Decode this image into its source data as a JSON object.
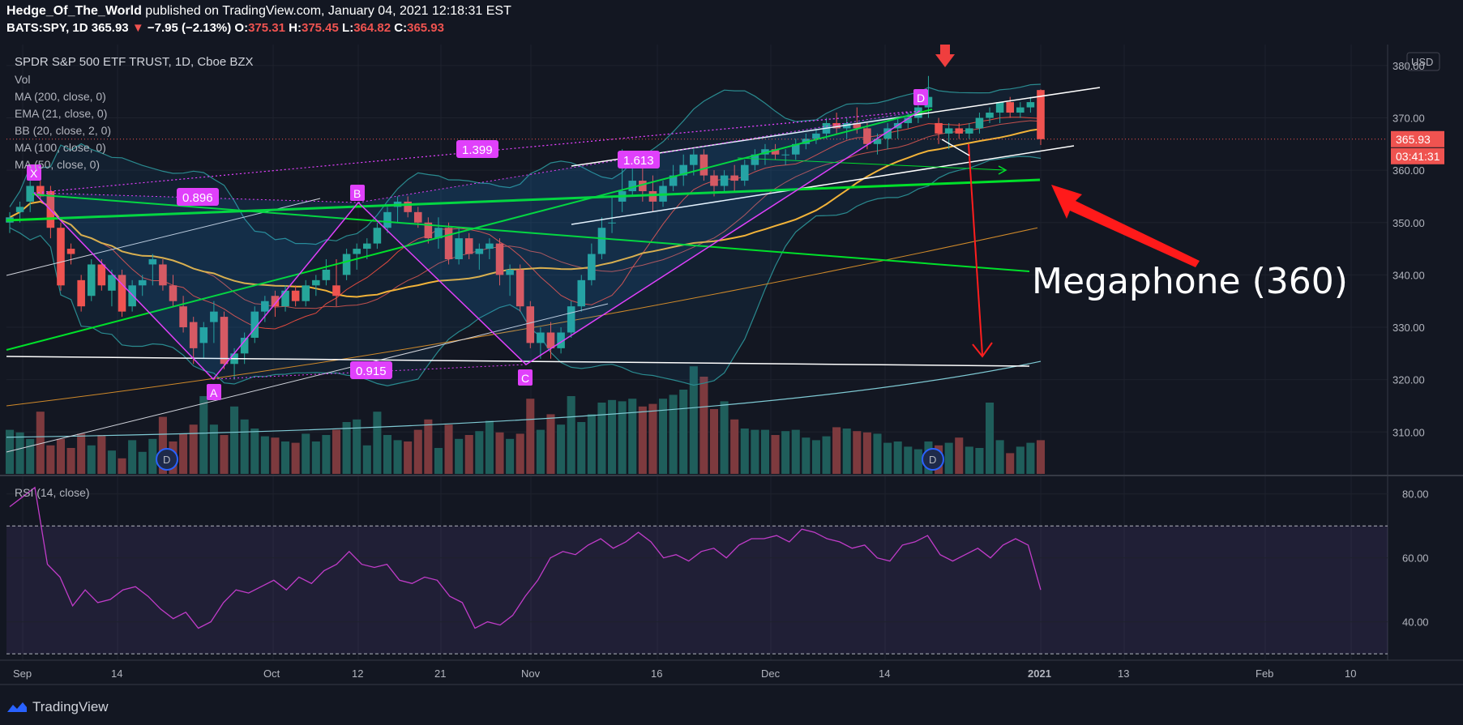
{
  "header": {
    "author": "Hedge_Of_The_World",
    "published": "published on TradingView.com, January 04, 2021 12:18:31 EST",
    "symbol": "BATS:SPY, 1D",
    "last": "365.93",
    "arrow": "▼",
    "change": "−7.95 (−2.13%)",
    "o_label": "O:",
    "o_val": "375.31",
    "h_label": "H:",
    "h_val": "375.45",
    "l_label": "L:",
    "l_val": "364.82",
    "c_label": "C:",
    "c_val": "365.93"
  },
  "legend": {
    "title": "SPDR S&P 500 ETF TRUST, 1D, Cboe BZX",
    "items": [
      "Vol",
      "MA (200, close, 0)",
      "EMA (21, close, 0)",
      "BB (20, close, 2, 0)",
      "MA (100, close, 0)",
      "MA (50, close, 0)"
    ]
  },
  "rsi_legend": "RSI (14, close)",
  "currency": "USD",
  "price_tag": "365.93",
  "countdown_tag": "03:41:31",
  "annotation": "Megaphone (360)",
  "pattern_points": [
    "X",
    "A",
    "B",
    "C",
    "D"
  ],
  "fib_labels": [
    "0.896",
    "1.399",
    "0.915",
    "1.613"
  ],
  "earnings_badges": [
    "D",
    "D"
  ],
  "footer": {
    "brand": "TradingView"
  },
  "colors": {
    "background": "#131722",
    "up": "#26a69a",
    "down": "#ef5350",
    "vol_up": "#1f5e5b",
    "vol_down": "#7d3a3e",
    "pattern": "#e040fb",
    "trend_green": "#00e02a",
    "ma50": "#f2b339",
    "ma200": "#7fcad4"
  },
  "chart_data": [
    {
      "type": "candlestick",
      "title": "SPDR S&P 500 ETF TRUST, 1D, Cboe BZX",
      "x_tick_labels": [
        "Sep",
        "14",
        "Oct",
        "12",
        "21",
        "Nov",
        "16",
        "Dec",
        "14",
        "2021",
        "13",
        "Feb",
        "10"
      ],
      "y_tick_labels": [
        "380.00",
        "370.00",
        "360.00",
        "350.00",
        "340.00",
        "330.00",
        "320.00",
        "310.00"
      ],
      "ylim": [
        302,
        384
      ],
      "last_price": 365.93,
      "candles": [
        [
          350,
          352,
          348,
          351
        ],
        [
          352,
          354,
          350,
          353
        ],
        [
          354,
          358,
          352,
          357
        ],
        [
          357,
          358,
          354,
          355
        ],
        [
          356,
          357,
          347,
          349
        ],
        [
          349,
          350,
          337,
          338
        ],
        [
          345,
          346,
          342,
          344
        ],
        [
          339,
          340,
          333,
          334
        ],
        [
          336,
          343,
          335,
          342
        ],
        [
          342,
          343,
          337,
          338
        ],
        [
          337,
          341,
          334,
          340
        ],
        [
          340,
          341,
          332,
          333
        ],
        [
          334,
          339,
          333,
          338
        ],
        [
          338,
          340,
          336,
          339
        ],
        [
          342,
          344,
          338,
          343
        ],
        [
          342,
          343,
          337,
          338
        ],
        [
          338,
          340,
          334,
          335
        ],
        [
          334,
          336,
          329,
          330
        ],
        [
          331,
          332,
          323,
          326
        ],
        [
          327,
          331,
          324,
          330
        ],
        [
          331,
          335,
          327,
          333
        ],
        [
          332,
          333,
          322,
          323
        ],
        [
          323,
          326,
          320,
          325
        ],
        [
          325,
          329,
          323,
          328
        ],
        [
          328,
          334,
          327,
          333
        ],
        [
          333,
          336,
          331,
          335
        ],
        [
          336,
          337,
          332,
          334
        ],
        [
          334,
          338,
          333,
          337
        ],
        [
          337,
          338,
          334,
          335
        ],
        [
          335,
          339,
          334,
          338
        ],
        [
          338,
          340,
          336,
          339
        ],
        [
          339,
          343,
          338,
          341
        ],
        [
          338,
          343,
          334,
          336
        ],
        [
          340,
          345,
          339,
          344
        ],
        [
          344,
          346,
          341,
          345
        ],
        [
          345,
          347,
          343,
          346
        ],
        [
          346,
          350,
          345,
          349
        ],
        [
          349,
          353,
          348,
          352
        ],
        [
          353,
          355,
          350,
          354
        ],
        [
          354,
          355,
          351,
          352
        ],
        [
          352,
          353,
          349,
          350
        ],
        [
          350,
          351,
          346,
          347
        ],
        [
          347,
          351,
          345,
          349
        ],
        [
          349,
          350,
          342,
          343
        ],
        [
          343,
          349,
          342,
          347
        ],
        [
          347,
          348,
          343,
          344
        ],
        [
          344,
          346,
          341,
          345
        ],
        [
          345,
          347,
          343,
          346
        ],
        [
          346,
          347,
          338,
          340
        ],
        [
          340,
          342,
          336,
          341
        ],
        [
          341,
          342,
          333,
          334
        ],
        [
          334,
          335,
          326,
          327
        ],
        [
          327,
          330,
          324,
          329
        ],
        [
          329,
          331,
          324,
          326
        ],
        [
          326,
          330,
          325,
          329
        ],
        [
          329,
          335,
          328,
          334
        ],
        [
          334,
          340,
          333,
          339
        ],
        [
          339,
          346,
          338,
          344
        ],
        [
          344,
          351,
          343,
          349
        ],
        [
          350,
          355,
          348,
          350
        ],
        [
          354,
          364,
          352,
          356
        ],
        [
          356,
          363,
          355,
          358
        ],
        [
          358,
          361,
          354,
          356
        ],
        [
          356,
          359,
          352,
          354
        ],
        [
          354,
          358,
          353,
          357
        ],
        [
          357,
          361,
          356,
          359
        ],
        [
          359,
          363,
          357,
          361
        ],
        [
          361,
          364,
          359,
          363
        ],
        [
          363,
          364,
          358,
          359
        ],
        [
          359,
          360,
          355,
          357
        ],
        [
          357,
          360,
          356,
          359
        ],
        [
          359,
          361,
          356,
          358
        ],
        [
          358,
          362,
          357,
          361
        ],
        [
          361,
          364,
          360,
          363
        ],
        [
          363,
          365,
          361,
          364
        ],
        [
          364,
          365,
          362,
          363
        ],
        [
          363,
          364,
          361,
          363
        ],
        [
          363,
          366,
          362,
          365
        ],
        [
          365,
          367,
          364,
          366
        ],
        [
          366,
          368,
          365,
          367
        ],
        [
          367,
          370,
          366,
          369
        ],
        [
          369,
          371,
          367,
          368
        ],
        [
          368,
          370,
          366,
          369
        ],
        [
          369,
          372,
          367,
          368
        ],
        [
          368,
          369,
          364,
          365
        ],
        [
          365,
          367,
          363,
          366
        ],
        [
          366,
          369,
          364,
          368
        ],
        [
          368,
          370,
          366,
          369
        ],
        [
          369,
          371,
          368,
          370
        ],
        [
          370,
          373,
          369,
          372
        ],
        [
          372,
          378,
          370,
          374
        ],
        [
          369,
          370,
          365,
          367
        ],
        [
          367,
          369,
          364,
          368
        ],
        [
          368,
          369,
          366,
          367
        ],
        [
          367,
          369,
          366,
          368
        ],
        [
          368,
          371,
          367,
          370
        ],
        [
          370,
          372,
          369,
          371
        ],
        [
          371,
          373,
          369,
          373
        ],
        [
          373,
          374,
          370,
          371
        ],
        [
          371,
          373,
          370,
          372
        ],
        [
          372,
          374,
          371,
          373
        ],
        [
          375.31,
          375.45,
          364.82,
          365.93
        ]
      ]
    },
    {
      "type": "line",
      "title": "RSI (14, close)",
      "y_tick_labels": [
        "80.00",
        "60.00",
        "40.00"
      ],
      "ylim": [
        28,
        85
      ],
      "bands": [
        70,
        30
      ],
      "values": [
        76,
        79,
        82,
        58,
        54,
        45,
        50,
        46,
        47,
        50,
        51,
        48,
        44,
        41,
        43,
        38,
        40,
        46,
        50,
        49,
        51,
        53,
        50,
        54,
        52,
        56,
        58,
        62,
        58,
        57,
        58,
        53,
        52,
        54,
        53,
        48,
        46,
        38,
        40,
        39,
        42,
        48,
        53,
        60,
        62,
        61,
        64,
        66,
        63,
        65,
        68,
        65,
        60,
        61,
        59,
        62,
        63,
        60,
        64,
        66,
        66,
        67,
        65,
        69,
        68,
        66,
        65,
        63,
        64,
        60,
        59,
        64,
        65,
        67,
        61,
        59,
        61,
        63,
        60,
        64,
        66,
        64,
        50
      ]
    }
  ]
}
